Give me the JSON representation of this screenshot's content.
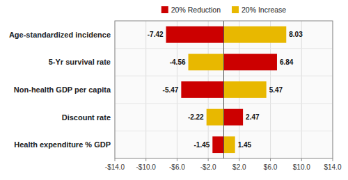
{
  "chart_data": {
    "type": "bar",
    "orientation": "horizontal",
    "stacked": true,
    "categories": [
      "Age-standardized incidence",
      "5-Yr survival rate",
      "Non-health GDP per capita",
      "Discount rate",
      "Health expenditure % GDP"
    ],
    "series": [
      {
        "name": "20% Reduction",
        "color": "#CC0000",
        "colors": [
          "#CC0000",
          "#E8B800",
          "#CC0000",
          "#E8B800",
          "#CC0000"
        ],
        "values": [
          -7.42,
          -4.56,
          -5.47,
          -2.22,
          -1.45
        ]
      },
      {
        "name": "20% Increase",
        "color": "#E8B800",
        "colors": [
          "#E8B800",
          "#CC0000",
          "#E8B800",
          "#CC0000",
          "#E8B800"
        ],
        "values": [
          8.03,
          6.84,
          5.47,
          2.47,
          1.45
        ]
      }
    ],
    "xlim": [
      -14.0,
      14.0
    ],
    "xticks": [
      {
        "value": -14.0,
        "label": "-$14.0"
      },
      {
        "value": -10.0,
        "label": "-$10.0"
      },
      {
        "value": -6.0,
        "label": "-$6.0"
      },
      {
        "value": -2.0,
        "label": "-$2.0"
      },
      {
        "value": 2.0,
        "label": "$2.0"
      },
      {
        "value": 6.0,
        "label": "$6.0"
      },
      {
        "value": 10.0,
        "label": "$10.0"
      },
      {
        "value": 14.0,
        "label": "$14.0"
      }
    ],
    "grid": true,
    "legend": "top",
    "data_labels": true
  }
}
